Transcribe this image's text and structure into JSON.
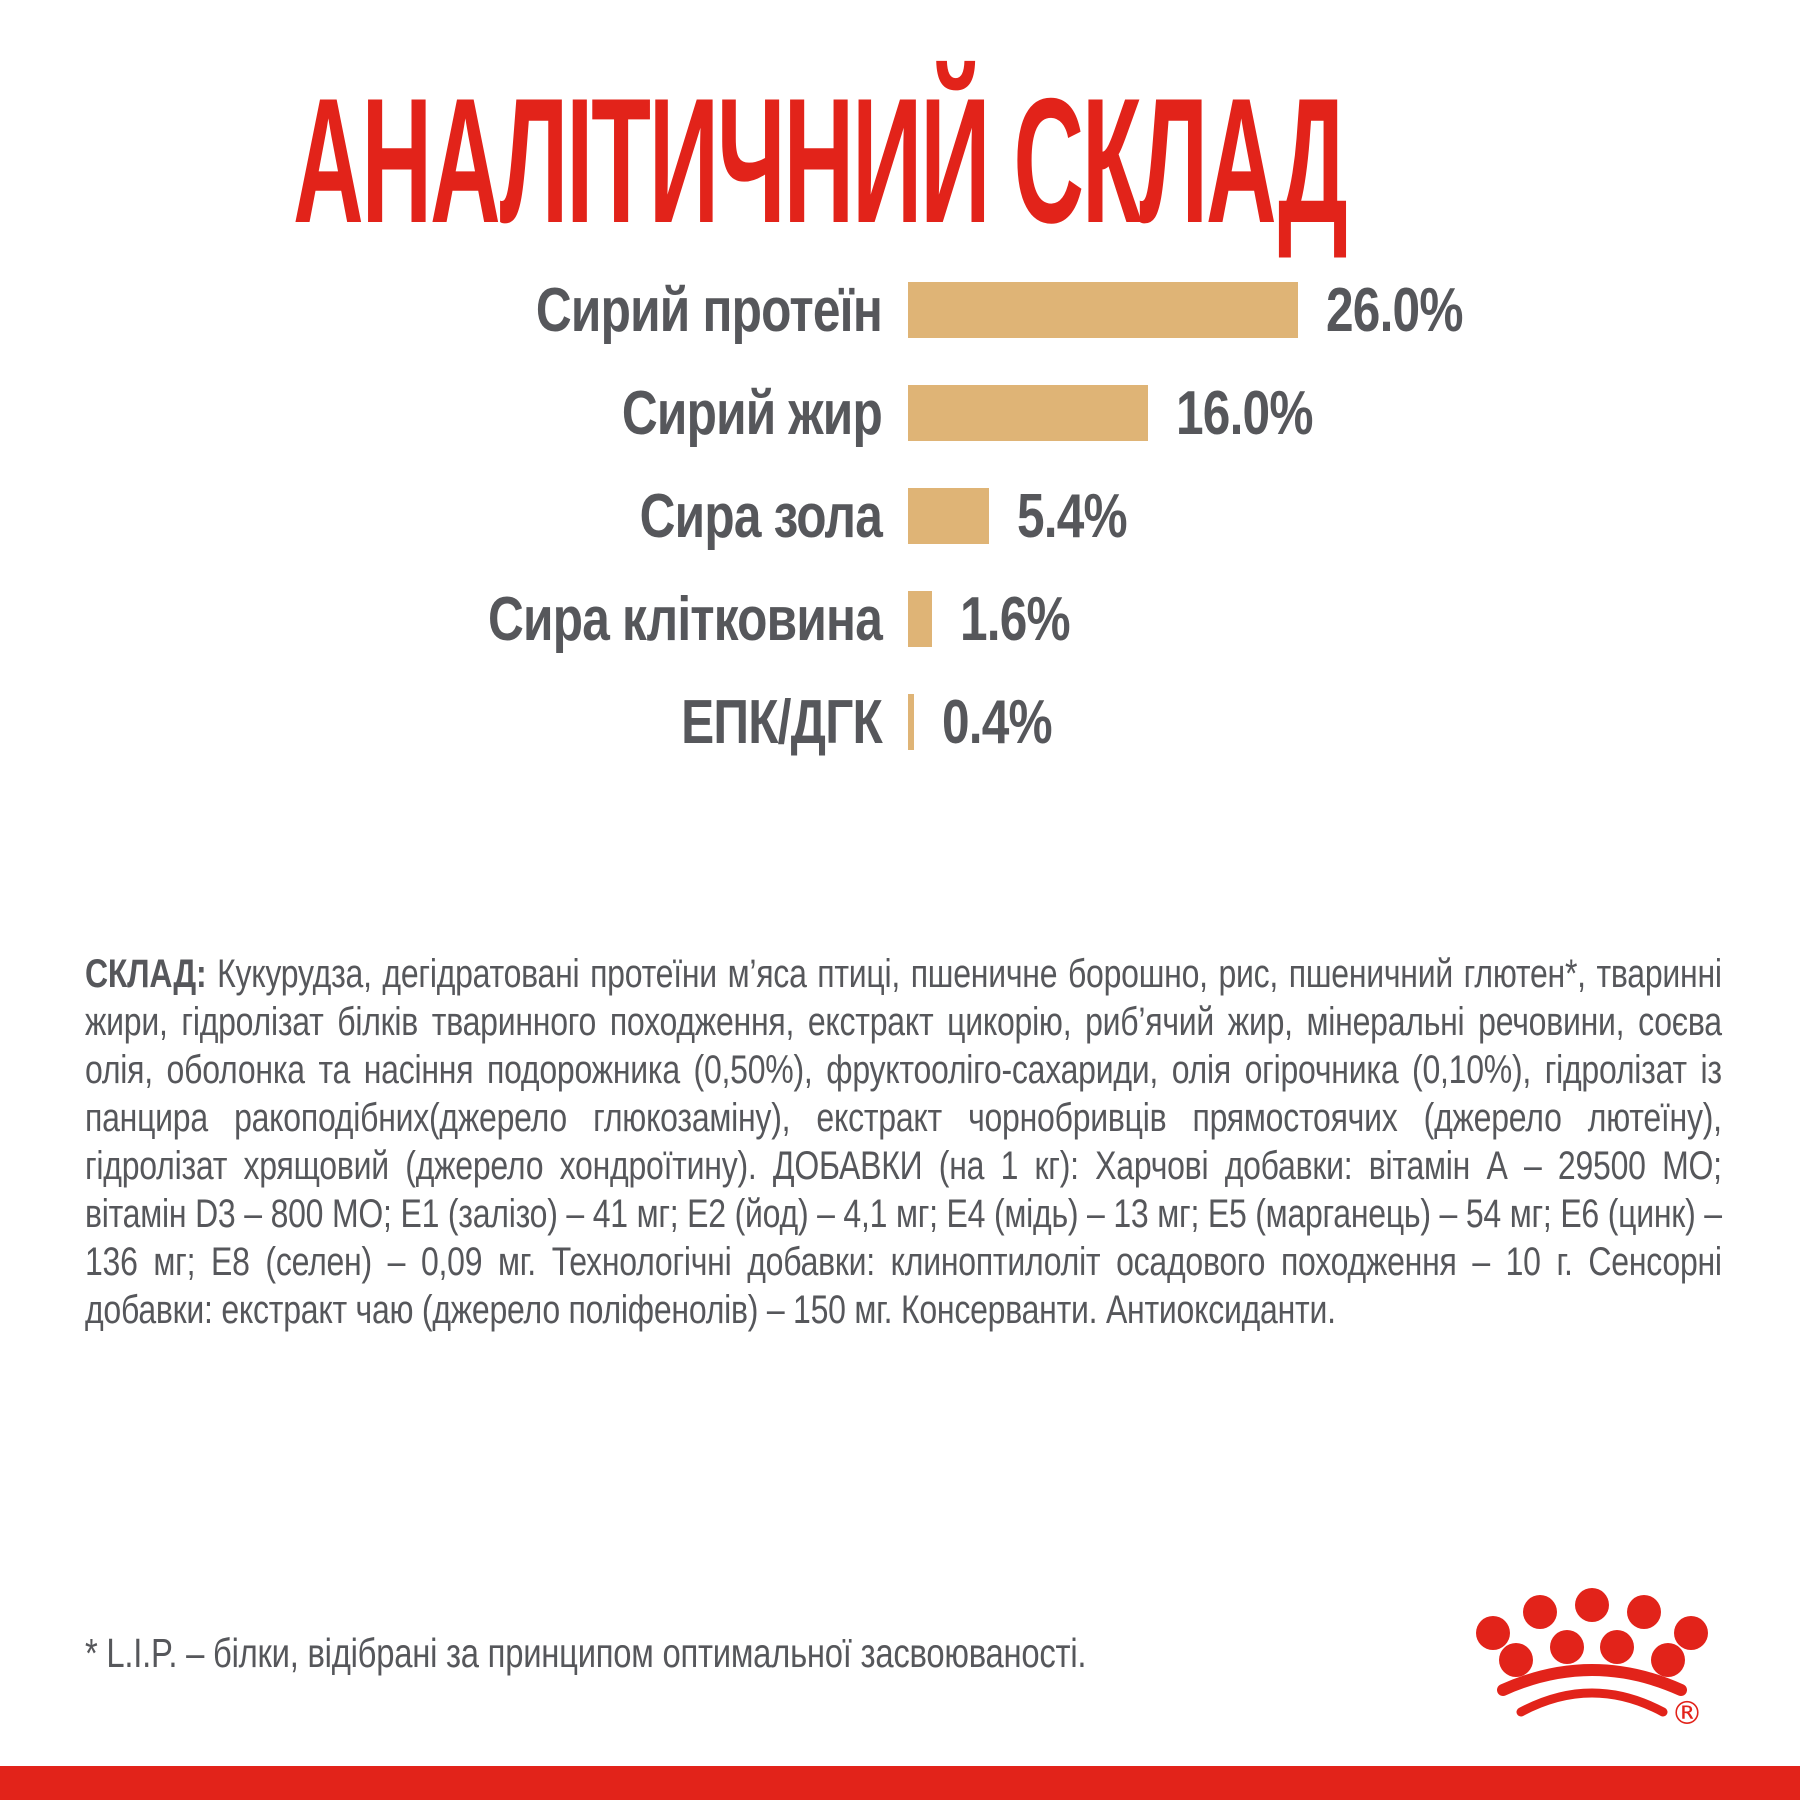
{
  "page": {
    "background": "#FFFFFF",
    "accent_red": "#E2231A",
    "bar_color": "#DFB476",
    "text_color": "#56575B"
  },
  "title": "АНАЛІТИЧНИЙ СКЛАД",
  "chart_data": {
    "type": "bar",
    "orientation": "horizontal",
    "title": "АНАЛІТИЧНИЙ СКЛАД",
    "categories": [
      "Сирий протеїн",
      "Сирий жир",
      "Сира зола",
      "Сира клітковина",
      "ЕПК/ДГК"
    ],
    "values": [
      26.0,
      16.0,
      5.4,
      1.6,
      0.4
    ],
    "value_labels": [
      "26.0%",
      "16.0%",
      "5.4%",
      "1.6%",
      "0.4%"
    ],
    "unit": "%",
    "xlim": [
      0,
      26
    ],
    "grid": false,
    "legend": false,
    "bar_color": "#DFB476"
  },
  "composition": {
    "label": "СКЛАД:",
    "text": "Кукурудза, дегідратовані протеїни м’яса птиці, пшеничне борошно, рис, пшеничний глютен*, тваринні жири, гідролізат білків тваринного походження, екстракт цикорію, риб’ячий жир, мінеральні речовини, соєва олія, оболонка та насіння подорожника (0,50%), фруктооліго-сахариди, олія огірочника (0,10%), гідролізат із панцира ракоподібних(джерело глюкозаміну), екстракт чорнобривців прямостоячих (джерело лютеїну), гідролізат хрящовий (джерело хондроїтину). ДОБАВКИ (на 1 кг): Харчові добавки: вітамін А – 29500 МО; вітамін D3 – 800 МО; Е1 (залізо) – 41 мг; Е2 (йод) – 4,1 мг; Е4 (мідь) – 13 мг; Е5 (марганець) – 54 мг; Е6 (цинк) – 136 мг; Е8 (селен) – 0,09 мг. Технологічні добавки: клиноптилоліт осадового походження – 10 г. Сенсорні добавки: екстракт чаю (джерело поліфенолів) – 150 мг. Консерванти. Антиоксиданти."
  },
  "footnote": "* L.I.P. – білки, відібрані за принципом оптимальної засвоюваності.",
  "logo": {
    "name": "royal-canin-crown",
    "registered_mark": "®"
  }
}
